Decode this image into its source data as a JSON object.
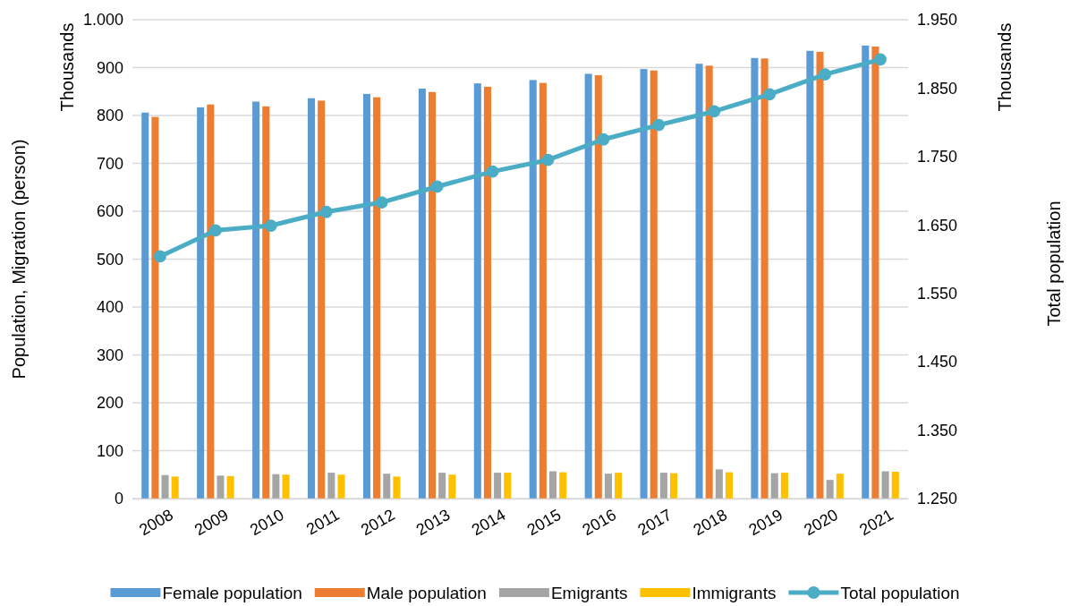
{
  "chart_data": {
    "type": "bar",
    "ylabel": "Population, Migration (person)",
    "y2label": "Total population",
    "annotations": [
      "Thousands",
      "Thousands"
    ],
    "categories": [
      "2008",
      "2009",
      "2010",
      "2011",
      "2012",
      "2013",
      "2014",
      "2015",
      "2016",
      "2017",
      "2018",
      "2019",
      "2020",
      "2021"
    ],
    "series": [
      {
        "name": "Female population",
        "color": "#5b9bd5",
        "values": [
          806,
          817,
          829,
          836,
          845,
          856,
          867,
          874,
          887,
          897,
          908,
          920,
          935,
          946
        ]
      },
      {
        "name": "Male population",
        "color": "#ed7d31",
        "values": [
          797,
          823,
          819,
          831,
          838,
          849,
          860,
          868,
          884,
          894,
          904,
          919,
          933,
          944
        ]
      },
      {
        "name": "Emigrants",
        "color": "#a5a5a5",
        "values": [
          49,
          48,
          51,
          54,
          52,
          54,
          54,
          57,
          52,
          54,
          61,
          53,
          39,
          57
        ]
      },
      {
        "name": "Immigrants",
        "color": "#ffc000",
        "values": [
          46,
          47,
          50,
          50,
          46,
          50,
          54,
          55,
          54,
          53,
          55,
          54,
          52,
          56
        ]
      },
      {
        "name": "Total population",
        "type": "line",
        "axis": "y2",
        "color": "#4bacc6",
        "marker": "circle",
        "values": [
          1604,
          1642,
          1649,
          1669,
          1683,
          1706,
          1728,
          1745,
          1775,
          1796,
          1816,
          1841,
          1870,
          1892
        ]
      }
    ],
    "ylim": [
      0,
      1000
    ],
    "yticks": [
      0,
      100,
      200,
      300,
      400,
      500,
      600,
      700,
      800,
      900,
      {
        "value": 1000,
        "label": "1.000"
      }
    ],
    "y2lim": [
      1250,
      1950
    ],
    "y2ticks": [
      {
        "value": 1250,
        "label": "1.250"
      },
      {
        "value": 1350,
        "label": "1.350"
      },
      {
        "value": 1450,
        "label": "1.450"
      },
      {
        "value": 1550,
        "label": "1.550"
      },
      {
        "value": 1650,
        "label": "1.650"
      },
      {
        "value": 1750,
        "label": "1.750"
      },
      {
        "value": 1850,
        "label": "1.850"
      },
      {
        "value": 1950,
        "label": "1.950"
      }
    ],
    "grid": "y",
    "legend": "bottom"
  }
}
